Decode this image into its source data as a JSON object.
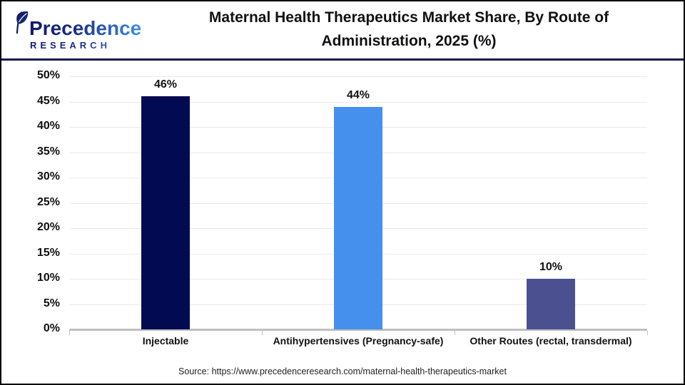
{
  "logo": {
    "wordmark": "Precedence",
    "subtext": "RESEARCH"
  },
  "header": {
    "title_lines": [
      "Maternal Health Therapeutics Market Share, By Route of",
      "Administration, 2025 (%)"
    ]
  },
  "chart_data": {
    "type": "bar",
    "title": "Maternal Health Therapeutics Market Share, By Route of Administration, 2025 (%)",
    "categories": [
      "Injectable",
      "Antihypertensives (Pregnancy-safe)",
      "Other Routes (rectal, transdermal)"
    ],
    "values": [
      46,
      44,
      10
    ],
    "value_labels": [
      "46%",
      "44%",
      "10%"
    ],
    "bar_colors": [
      "#020a52",
      "#4590ec",
      "#4b5190"
    ],
    "xlabel": "",
    "ylabel": "",
    "ylim": [
      0,
      50
    ],
    "ytick_step": 5,
    "ytick_labels": [
      "0%",
      "5%",
      "10%",
      "15%",
      "20%",
      "25%",
      "30%",
      "35%",
      "40%",
      "45%",
      "50%"
    ],
    "grid": true,
    "legend": "none",
    "colors": {
      "divider": "#131b4d",
      "axis": "#bfbfbf",
      "gridline": "#e9e9e9"
    }
  },
  "footer": {
    "source": "Source: https://www.precedenceresearch.com/maternal-health-therapeutics-market"
  }
}
